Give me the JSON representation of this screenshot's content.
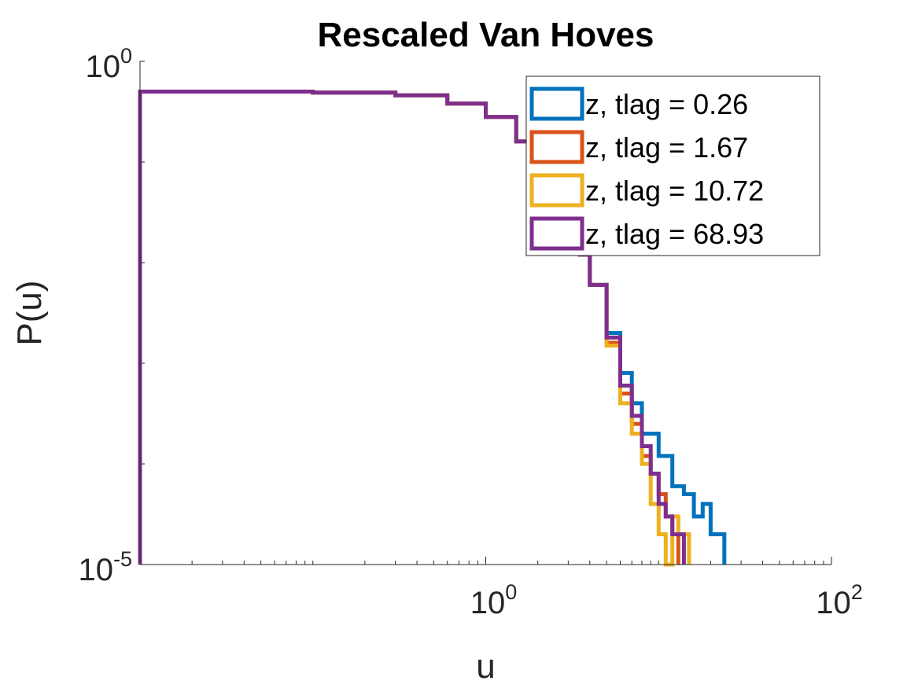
{
  "chart_data": {
    "type": "line",
    "title": "Rescaled Van Hoves",
    "xlabel": "u",
    "ylabel": "P(u)",
    "xscale": "log",
    "yscale": "log",
    "xlim": [
      0.01,
      100
    ],
    "ylim": [
      1e-05,
      1
    ],
    "xticks": [
      {
        "value": 1,
        "base": "10",
        "exp": "0"
      },
      {
        "value": 100,
        "base": "10",
        "exp": "2"
      }
    ],
    "yticks": [
      {
        "value": 1,
        "base": "10",
        "exp": "0"
      },
      {
        "value": 1e-05,
        "base": "10",
        "exp": "-5"
      }
    ],
    "legend_position": "top-right",
    "grid": false,
    "series": [
      {
        "name": "z, tlag = 0.26",
        "color": "#0072BD",
        "x": [
          0.01,
          0.01,
          0.1,
          0.3,
          0.6,
          1.0,
          1.5,
          2.0,
          2.5,
          3.0,
          3.5,
          4.0,
          5.0,
          6.0,
          7.0,
          8.0,
          10.0,
          12.0,
          14.0,
          16.0,
          18.0,
          20.0,
          22.0,
          24.0,
          24.0
        ],
        "y": [
          1e-05,
          0.5,
          0.49,
          0.46,
          0.38,
          0.28,
          0.16,
          0.09,
          0.05,
          0.025,
          0.012,
          0.006,
          0.002,
          0.0008,
          0.0004,
          0.0002,
          0.00012,
          6e-05,
          5e-05,
          3e-05,
          4e-05,
          2e-05,
          2e-05,
          1e-05,
          1e-05
        ]
      },
      {
        "name": "z, tlag = 1.67",
        "color": "#D95319",
        "x": [
          0.01,
          0.01,
          0.1,
          0.3,
          0.6,
          1.0,
          1.5,
          2.0,
          2.5,
          3.0,
          3.5,
          4.0,
          5.0,
          6.0,
          7.0,
          8.0,
          9.0,
          10.0,
          11.0,
          12.0,
          13.0,
          13.0
        ],
        "y": [
          1e-05,
          0.5,
          0.49,
          0.46,
          0.38,
          0.28,
          0.16,
          0.09,
          0.05,
          0.025,
          0.012,
          0.006,
          0.0016,
          0.0005,
          0.00025,
          0.00012,
          8e-05,
          5e-05,
          3e-05,
          2e-05,
          1e-05,
          1e-05
        ]
      },
      {
        "name": "z, tlag = 10.72",
        "color": "#EDB120",
        "x": [
          0.01,
          0.01,
          0.1,
          0.3,
          0.6,
          1.0,
          1.5,
          2.0,
          2.5,
          3.0,
          3.5,
          4.0,
          5.0,
          6.0,
          7.0,
          8.0,
          9.0,
          10.0,
          11.0,
          12.0,
          13.0,
          14.0,
          15.0,
          15.0
        ],
        "y": [
          1e-05,
          0.5,
          0.49,
          0.46,
          0.38,
          0.28,
          0.16,
          0.09,
          0.05,
          0.025,
          0.012,
          0.006,
          0.0015,
          0.0004,
          0.0002,
          0.0001,
          4e-05,
          2e-05,
          1e-05,
          3e-05,
          2e-05,
          2e-05,
          1e-05,
          1e-05
        ]
      },
      {
        "name": "z, tlag = 68.93",
        "color": "#7E2F8E",
        "x": [
          0.01,
          0.01,
          0.1,
          0.3,
          0.6,
          1.0,
          1.5,
          2.0,
          2.5,
          3.0,
          3.5,
          4.0,
          5.0,
          6.0,
          7.0,
          8.0,
          9.0,
          10.0,
          11.0,
          12.0,
          14.0,
          14.0
        ],
        "y": [
          1e-05,
          0.5,
          0.49,
          0.46,
          0.38,
          0.28,
          0.16,
          0.09,
          0.05,
          0.025,
          0.012,
          0.006,
          0.0018,
          0.0006,
          0.0003,
          0.00015,
          8e-05,
          4e-05,
          3e-05,
          2e-05,
          1e-05,
          1e-05
        ]
      }
    ]
  }
}
